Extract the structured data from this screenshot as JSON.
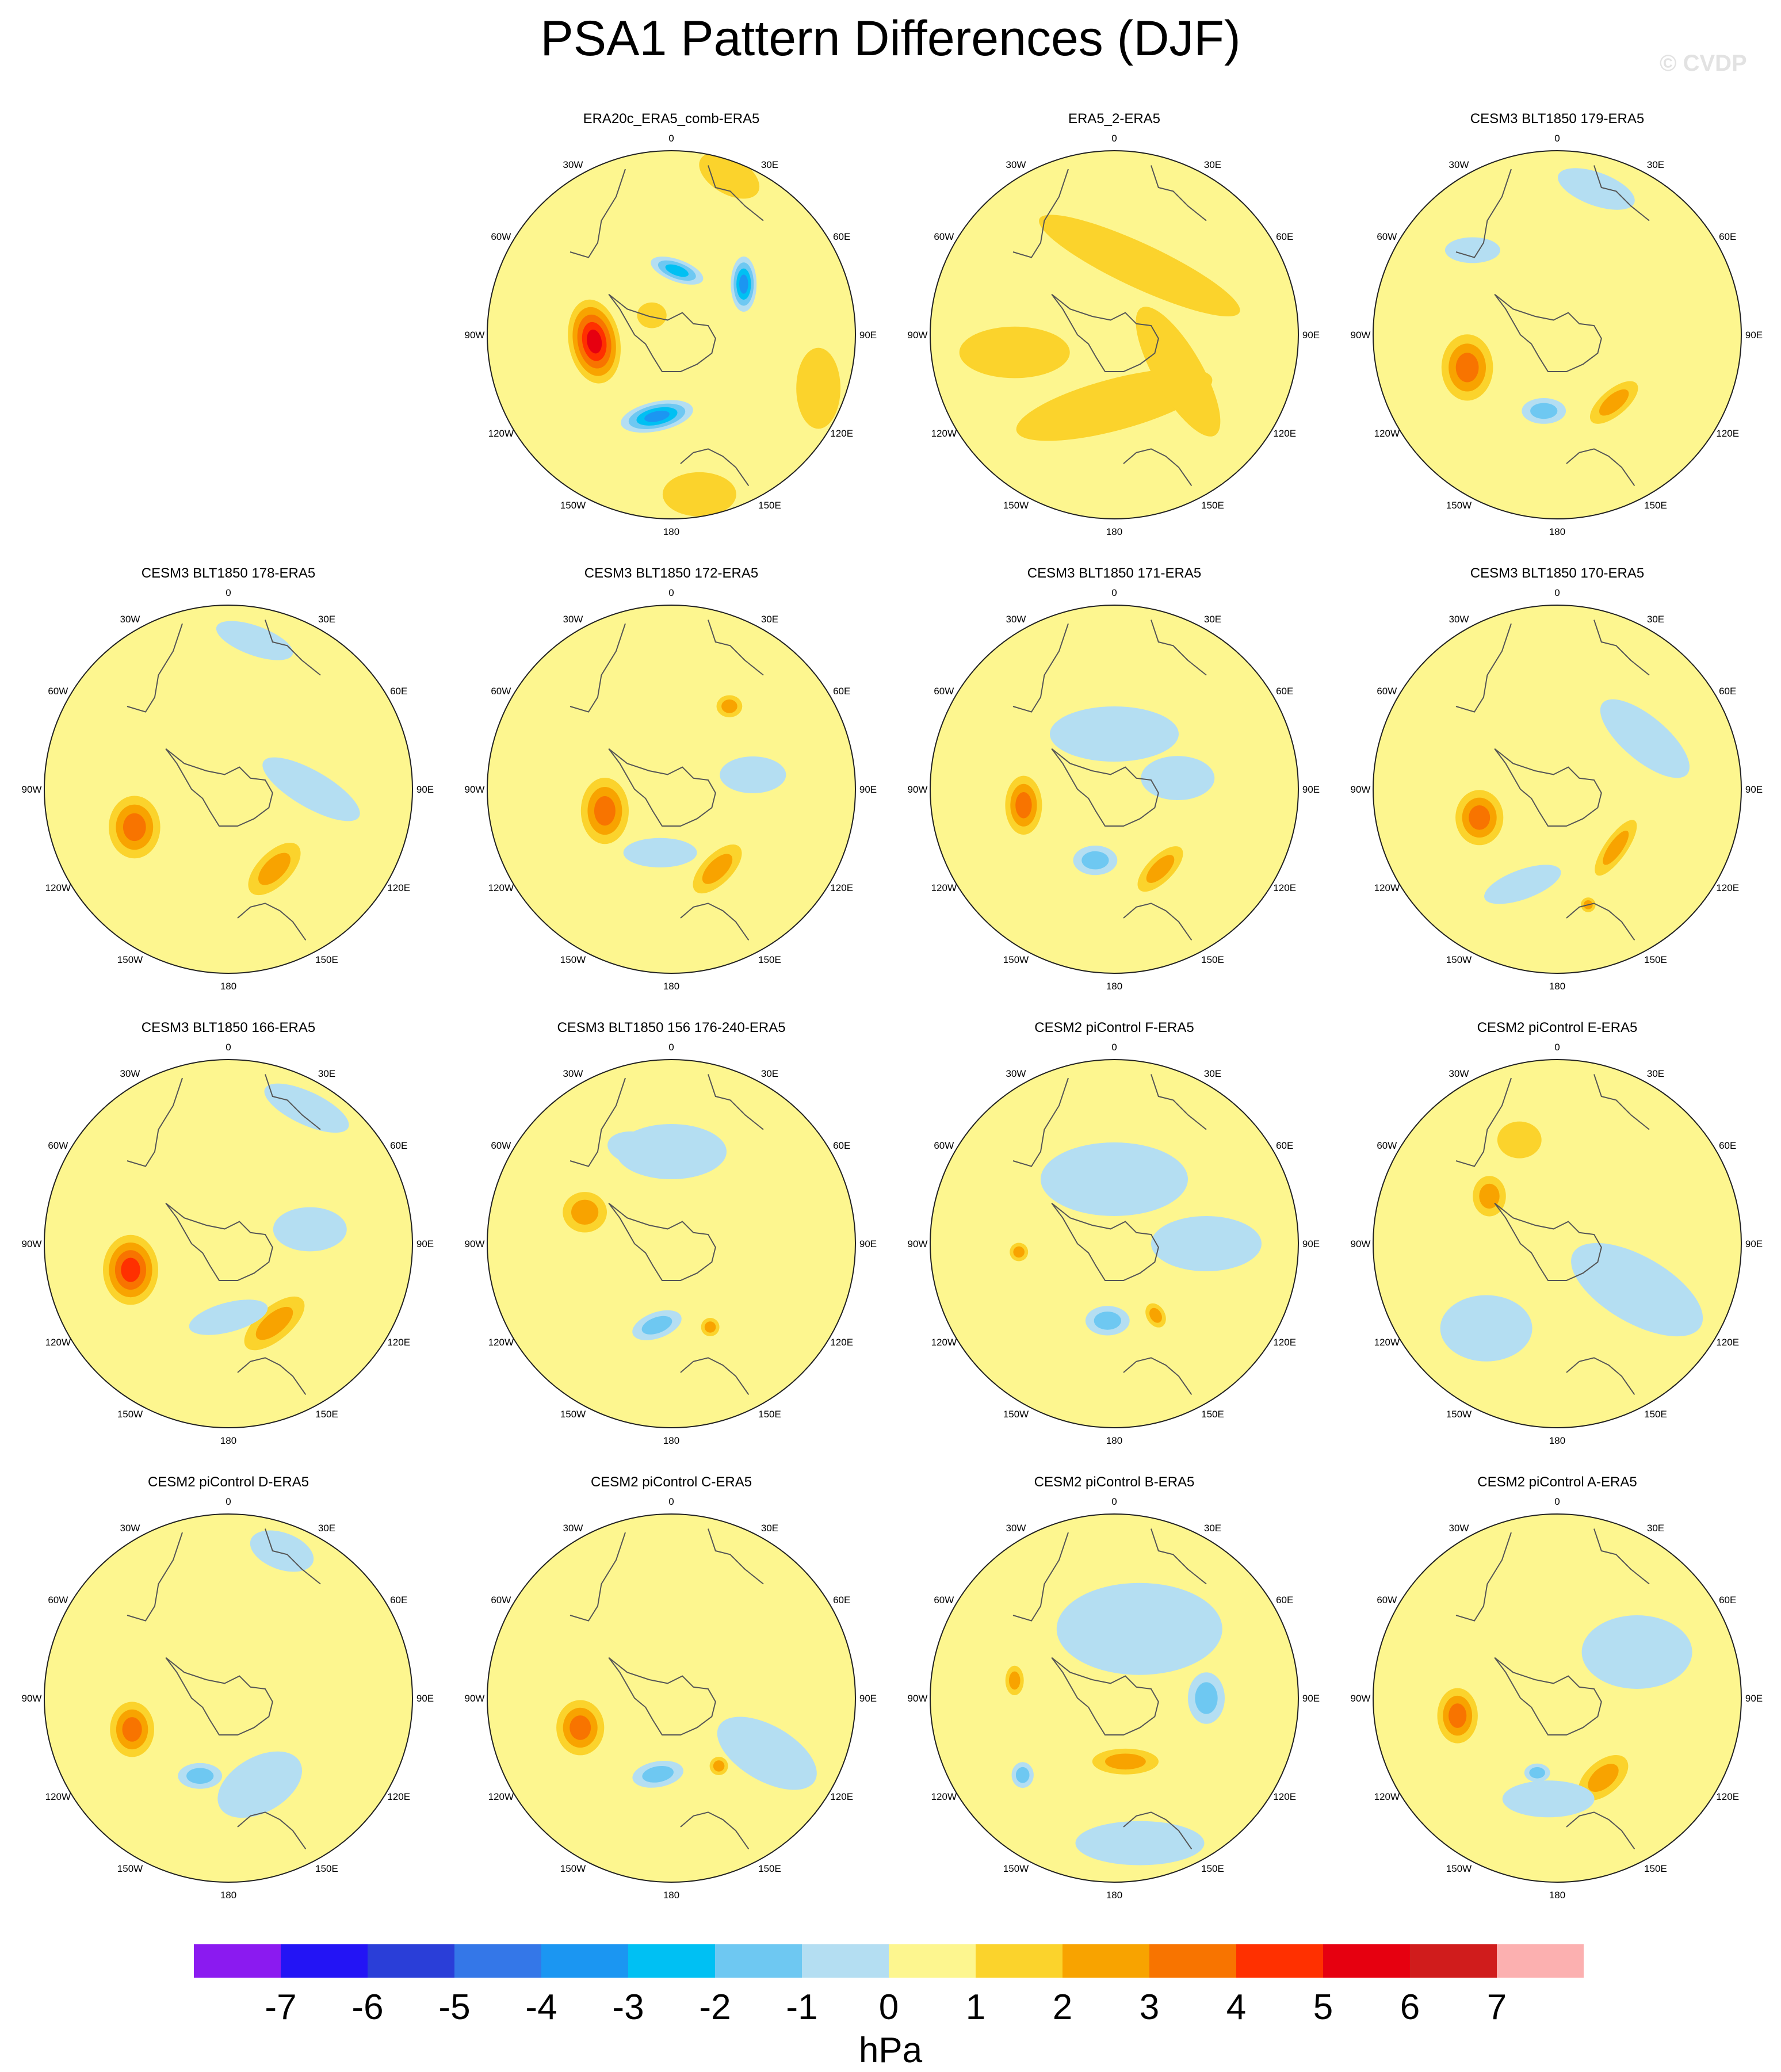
{
  "figure": {
    "title": "PSA1 Pattern Differences (DJF)",
    "watermark": "© CVDP",
    "colorbar_unit": "hPa",
    "colorbar_ticks": [
      "-7",
      "-6",
      "-5",
      "-4",
      "-3",
      "-2",
      "-1",
      "0",
      "1",
      "2",
      "3",
      "4",
      "5",
      "6",
      "7"
    ],
    "colorbar_colors": [
      "#8b1af0",
      "#2314f5",
      "#2a3ed8",
      "#3477e8",
      "#1b96f2",
      "#00c0f3",
      "#6ec8f2",
      "#b4def2",
      "#fdf68f",
      "#fbd32c",
      "#f8a300",
      "#f87400",
      "#ff3000",
      "#e60010",
      "#d01c1c",
      "#fcb0b0"
    ],
    "lon_labels": [
      "0",
      "30E",
      "60E",
      "90E",
      "120E",
      "150E",
      "180",
      "150W",
      "120W",
      "90W",
      "60W",
      "30W"
    ]
  },
  "chart_data": [
    {
      "type": "heatmap",
      "title": "ERA20c_ERA5_comb-ERA5",
      "projection": "south-polar-stereographic",
      "units": "hPa",
      "features": [
        {
          "lon": -95,
          "r": 0.42,
          "rx": 0.14,
          "ry": 0.23,
          "rot": -10,
          "value": 5
        },
        {
          "lon": 5,
          "r": 0.35,
          "rx": 0.15,
          "ry": 0.06,
          "rot": 20,
          "value": -3
        },
        {
          "lon": 55,
          "r": 0.48,
          "rx": 0.07,
          "ry": 0.15,
          "rot": 0,
          "value": -4
        },
        {
          "lon": -170,
          "r": 0.45,
          "rx": 0.2,
          "ry": 0.08,
          "rot": -12,
          "value": -4
        },
        {
          "lon": -45,
          "r": 0.15,
          "rx": 0.08,
          "ry": 0.07,
          "rot": 0,
          "value": 1
        },
        {
          "lon": 20,
          "r": 0.92,
          "rx": 0.18,
          "ry": 0.1,
          "rot": 30,
          "value": 1
        },
        {
          "lon": 110,
          "r": 0.85,
          "rx": 0.12,
          "ry": 0.22,
          "rot": 0,
          "value": 1
        },
        {
          "lon": 170,
          "r": 0.88,
          "rx": 0.2,
          "ry": 0.12,
          "rot": 0,
          "value": 1
        }
      ]
    },
    {
      "type": "heatmap",
      "title": "ERA5_2-ERA5",
      "projection": "south-polar-stereographic",
      "units": "hPa",
      "features": [
        {
          "lon": 20,
          "r": 0.4,
          "rx": 0.6,
          "ry": 0.12,
          "rot": 25,
          "value": 1
        },
        {
          "lon": 180,
          "r": 0.38,
          "rx": 0.55,
          "ry": 0.14,
          "rot": -15,
          "value": 1
        },
        {
          "lon": -100,
          "r": 0.55,
          "rx": 0.3,
          "ry": 0.14,
          "rot": 0,
          "value": 1
        },
        {
          "lon": 120,
          "r": 0.4,
          "rx": 0.4,
          "ry": 0.13,
          "rot": 60,
          "value": 1
        }
      ]
    },
    {
      "type": "heatmap",
      "title": "CESM3 BLT1850 179-ERA5",
      "projection": "south-polar-stereographic",
      "units": "hPa",
      "features": [
        {
          "lon": -110,
          "r": 0.52,
          "rx": 0.14,
          "ry": 0.18,
          "rot": 0,
          "value": 3
        },
        {
          "lon": 140,
          "r": 0.48,
          "rx": 0.16,
          "ry": 0.07,
          "rot": -40,
          "value": 2
        },
        {
          "lon": -170,
          "r": 0.42,
          "rx": 0.12,
          "ry": 0.07,
          "rot": 0,
          "value": -2
        },
        {
          "lon": 15,
          "r": 0.82,
          "rx": 0.22,
          "ry": 0.09,
          "rot": 20,
          "value": -1
        },
        {
          "lon": -45,
          "r": 0.65,
          "rx": 0.15,
          "ry": 0.07,
          "rot": 0,
          "value": -1
        }
      ]
    },
    {
      "type": "heatmap",
      "title": "CESM3 BLT1850 178-ERA5",
      "projection": "south-polar-stereographic",
      "units": "hPa",
      "features": [
        {
          "lon": -112,
          "r": 0.55,
          "rx": 0.14,
          "ry": 0.17,
          "rot": 0,
          "value": 3
        },
        {
          "lon": 150,
          "r": 0.5,
          "rx": 0.18,
          "ry": 0.09,
          "rot": -45,
          "value": 2
        },
        {
          "lon": 90,
          "r": 0.45,
          "rx": 0.3,
          "ry": 0.1,
          "rot": 30,
          "value": -1
        },
        {
          "lon": 10,
          "r": 0.82,
          "rx": 0.22,
          "ry": 0.08,
          "rot": 20,
          "value": -1
        }
      ]
    },
    {
      "type": "heatmap",
      "title": "CESM3 BLT1850 172-ERA5",
      "projection": "south-polar-stereographic",
      "units": "hPa",
      "features": [
        {
          "lon": -108,
          "r": 0.38,
          "rx": 0.13,
          "ry": 0.18,
          "rot": 0,
          "value": 3
        },
        {
          "lon": 150,
          "r": 0.5,
          "rx": 0.17,
          "ry": 0.08,
          "rot": -45,
          "value": 2
        },
        {
          "lon": 35,
          "r": 0.55,
          "rx": 0.07,
          "ry": 0.06,
          "rot": 0,
          "value": 2
        },
        {
          "lon": 80,
          "r": 0.45,
          "rx": 0.18,
          "ry": 0.1,
          "rot": 0,
          "value": -1
        },
        {
          "lon": -170,
          "r": 0.35,
          "rx": 0.2,
          "ry": 0.08,
          "rot": 0,
          "value": -1
        }
      ]
    },
    {
      "type": "heatmap",
      "title": "CESM3 BLT1850 171-ERA5",
      "projection": "south-polar-stereographic",
      "units": "hPa",
      "features": [
        {
          "lon": -100,
          "r": 0.5,
          "rx": 0.1,
          "ry": 0.16,
          "rot": 0,
          "value": 3
        },
        {
          "lon": -165,
          "r": 0.4,
          "rx": 0.12,
          "ry": 0.08,
          "rot": 0,
          "value": -2
        },
        {
          "lon": 150,
          "r": 0.5,
          "rx": 0.16,
          "ry": 0.07,
          "rot": -45,
          "value": 2
        },
        {
          "lon": 0,
          "r": 0.3,
          "rx": 0.35,
          "ry": 0.15,
          "rot": 0,
          "value": -1
        },
        {
          "lon": 80,
          "r": 0.35,
          "rx": 0.2,
          "ry": 0.12,
          "rot": 0,
          "value": -1
        }
      ]
    },
    {
      "type": "heatmap",
      "title": "CESM3 BLT1850 170-ERA5",
      "projection": "south-polar-stereographic",
      "units": "hPa",
      "features": [
        {
          "lon": -110,
          "r": 0.45,
          "rx": 0.13,
          "ry": 0.15,
          "rot": 0,
          "value": 3
        },
        {
          "lon": 135,
          "r": 0.45,
          "rx": 0.18,
          "ry": 0.06,
          "rot": -55,
          "value": 2
        },
        {
          "lon": 165,
          "r": 0.65,
          "rx": 0.04,
          "ry": 0.04,
          "rot": 0,
          "value": 2
        },
        {
          "lon": -160,
          "r": 0.55,
          "rx": 0.22,
          "ry": 0.08,
          "rot": -20,
          "value": -1
        },
        {
          "lon": 60,
          "r": 0.55,
          "rx": 0.3,
          "ry": 0.12,
          "rot": 40,
          "value": -1
        }
      ]
    },
    {
      "type": "heatmap",
      "title": "CESM3 BLT1850 166-ERA5",
      "projection": "south-polar-stereographic",
      "units": "hPa",
      "features": [
        {
          "lon": -105,
          "r": 0.55,
          "rx": 0.15,
          "ry": 0.19,
          "rot": 0,
          "value": 4
        },
        {
          "lon": 150,
          "r": 0.5,
          "rx": 0.2,
          "ry": 0.09,
          "rot": -40,
          "value": 2
        },
        {
          "lon": 80,
          "r": 0.45,
          "rx": 0.2,
          "ry": 0.12,
          "rot": 0,
          "value": -1
        },
        {
          "lon": 180,
          "r": 0.4,
          "rx": 0.22,
          "ry": 0.08,
          "rot": -15,
          "value": -1
        },
        {
          "lon": 30,
          "r": 0.85,
          "rx": 0.25,
          "ry": 0.09,
          "rot": 25,
          "value": -1
        }
      ]
    },
    {
      "type": "heatmap",
      "title": "CESM3 BLT1850 156 176-240-ERA5",
      "projection": "south-polar-stereographic",
      "units": "hPa",
      "features": [
        {
          "lon": -70,
          "r": 0.5,
          "rx": 0.12,
          "ry": 0.11,
          "rot": 0,
          "value": 2
        },
        {
          "lon": 155,
          "r": 0.5,
          "rx": 0.05,
          "ry": 0.05,
          "rot": 0,
          "value": 2
        },
        {
          "lon": -170,
          "r": 0.45,
          "rx": 0.14,
          "ry": 0.07,
          "rot": -20,
          "value": -2
        },
        {
          "lon": -20,
          "r": 0.55,
          "rx": 0.16,
          "ry": 0.09,
          "rot": 10,
          "value": -2
        },
        {
          "lon": 0,
          "r": 0.5,
          "rx": 0.3,
          "ry": 0.15,
          "rot": 0,
          "value": -1
        }
      ]
    },
    {
      "type": "heatmap",
      "title": "CESM2 piControl F-ERA5",
      "projection": "south-polar-stereographic",
      "units": "hPa",
      "features": [
        {
          "lon": -175,
          "r": 0.42,
          "rx": 0.12,
          "ry": 0.08,
          "rot": 0,
          "value": -2
        },
        {
          "lon": 150,
          "r": 0.45,
          "rx": 0.05,
          "ry": 0.07,
          "rot": -30,
          "value": 2
        },
        {
          "lon": -95,
          "r": 0.52,
          "rx": 0.05,
          "ry": 0.05,
          "rot": 0,
          "value": 2
        },
        {
          "lon": 0,
          "r": 0.35,
          "rx": 0.4,
          "ry": 0.2,
          "rot": 0,
          "value": -1
        },
        {
          "lon": 90,
          "r": 0.5,
          "rx": 0.3,
          "ry": 0.15,
          "rot": 0,
          "value": -1
        }
      ]
    },
    {
      "type": "heatmap",
      "title": "CESM2 piControl E-ERA5",
      "projection": "south-polar-stereographic",
      "units": "hPa",
      "features": [
        {
          "lon": -55,
          "r": 0.45,
          "rx": 0.09,
          "ry": 0.11,
          "rot": 0,
          "value": 2
        },
        {
          "lon": 120,
          "r": 0.5,
          "rx": 0.4,
          "ry": 0.18,
          "rot": 30,
          "value": -1
        },
        {
          "lon": -140,
          "r": 0.6,
          "rx": 0.25,
          "ry": 0.18,
          "rot": 0,
          "value": -1
        },
        {
          "lon": -20,
          "r": 0.6,
          "rx": 0.12,
          "ry": 0.1,
          "rot": 0,
          "value": 1
        }
      ]
    },
    {
      "type": "heatmap",
      "title": "CESM2 piControl D-ERA5",
      "projection": "south-polar-stereographic",
      "units": "hPa",
      "features": [
        {
          "lon": -108,
          "r": 0.55,
          "rx": 0.12,
          "ry": 0.15,
          "rot": 0,
          "value": 3
        },
        {
          "lon": -160,
          "r": 0.45,
          "rx": 0.12,
          "ry": 0.07,
          "rot": 0,
          "value": -2
        },
        {
          "lon": 160,
          "r": 0.5,
          "rx": 0.25,
          "ry": 0.15,
          "rot": -30,
          "value": -1
        },
        {
          "lon": 20,
          "r": 0.85,
          "rx": 0.18,
          "ry": 0.1,
          "rot": 20,
          "value": -1
        }
      ]
    },
    {
      "type": "heatmap",
      "title": "CESM2 piControl C-ERA5",
      "projection": "south-polar-stereographic",
      "units": "hPa",
      "features": [
        {
          "lon": -108,
          "r": 0.52,
          "rx": 0.13,
          "ry": 0.15,
          "rot": 0,
          "value": 3
        },
        {
          "lon": -170,
          "r": 0.42,
          "rx": 0.14,
          "ry": 0.07,
          "rot": -10,
          "value": -2
        },
        {
          "lon": 145,
          "r": 0.45,
          "rx": 0.05,
          "ry": 0.05,
          "rot": 0,
          "value": 2
        },
        {
          "lon": 120,
          "r": 0.6,
          "rx": 0.3,
          "ry": 0.15,
          "rot": 30,
          "value": -1
        }
      ]
    },
    {
      "type": "heatmap",
      "title": "CESM2 piControl B-ERA5",
      "projection": "south-polar-stereographic",
      "units": "hPa",
      "features": [
        {
          "lon": 0,
          "r": 0.45,
          "rx": 0.15,
          "ry": 0.1,
          "rot": 0,
          "value": -2
        },
        {
          "lon": 90,
          "r": 0.5,
          "rx": 0.1,
          "ry": 0.14,
          "rot": 0,
          "value": -2
        },
        {
          "lon": -130,
          "r": 0.65,
          "rx": 0.06,
          "ry": 0.07,
          "rot": 0,
          "value": -2
        },
        {
          "lon": -80,
          "r": 0.55,
          "rx": 0.05,
          "ry": 0.08,
          "rot": 0,
          "value": 2
        },
        {
          "lon": 170,
          "r": 0.35,
          "rx": 0.18,
          "ry": 0.07,
          "rot": 0,
          "value": 2
        },
        {
          "lon": 20,
          "r": 0.4,
          "rx": 0.45,
          "ry": 0.25,
          "rot": 0,
          "value": -1
        },
        {
          "lon": 170,
          "r": 0.8,
          "rx": 0.35,
          "ry": 0.12,
          "rot": 0,
          "value": -1
        }
      ]
    },
    {
      "type": "heatmap",
      "title": "CESM2 piControl A-ERA5",
      "projection": "south-polar-stereographic",
      "units": "hPa",
      "features": [
        {
          "lon": -100,
          "r": 0.55,
          "rx": 0.11,
          "ry": 0.15,
          "rot": 0,
          "value": 3
        },
        {
          "lon": 150,
          "r": 0.5,
          "rx": 0.16,
          "ry": 0.09,
          "rot": -40,
          "value": 2
        },
        {
          "lon": -165,
          "r": 0.42,
          "rx": 0.07,
          "ry": 0.05,
          "rot": 0,
          "value": -2
        },
        {
          "lon": 60,
          "r": 0.5,
          "rx": 0.3,
          "ry": 0.2,
          "rot": 0,
          "value": -1
        },
        {
          "lon": -175,
          "r": 0.55,
          "rx": 0.25,
          "ry": 0.1,
          "rot": 0,
          "value": -1
        }
      ]
    }
  ]
}
